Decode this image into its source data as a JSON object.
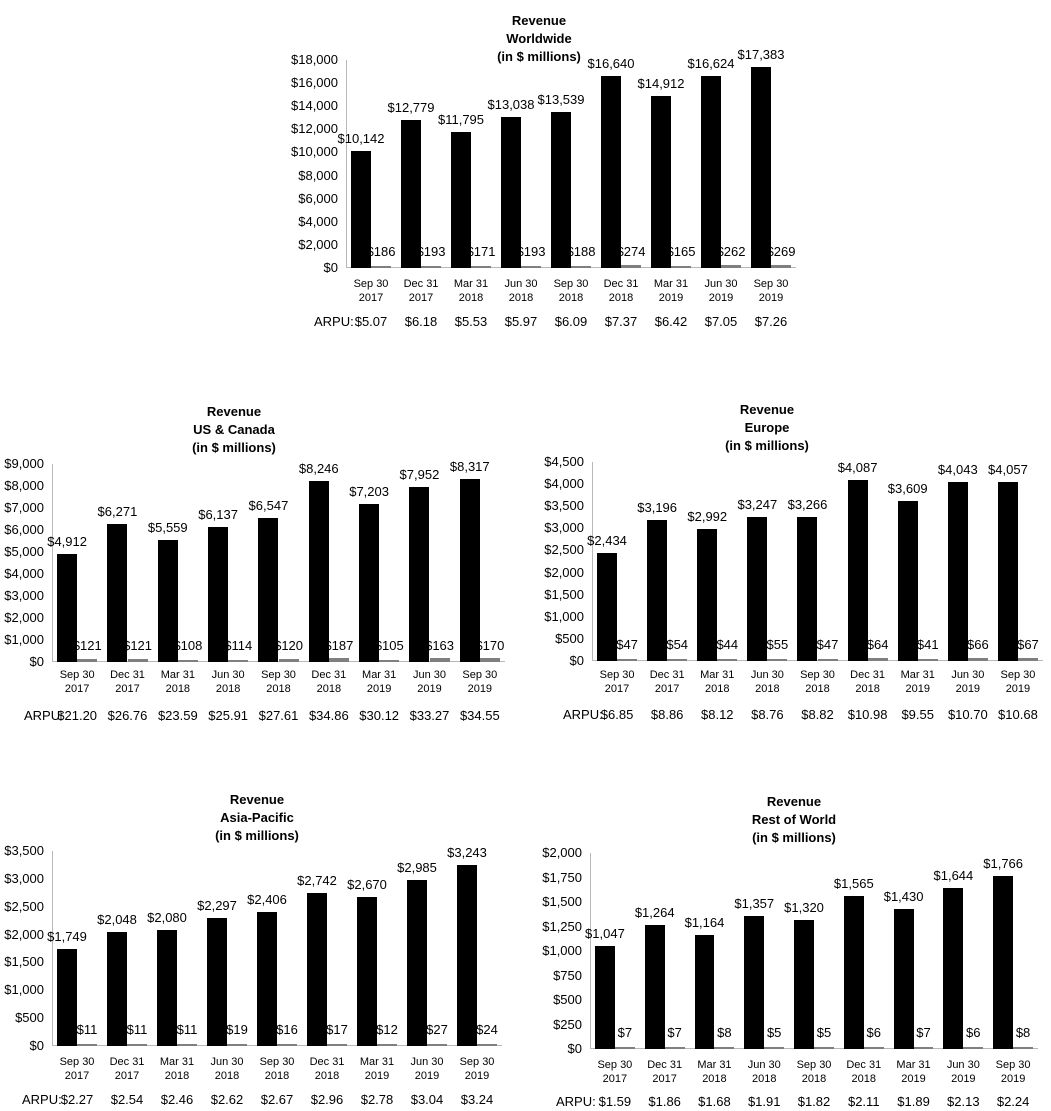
{
  "categories": [
    {
      "line1": "Sep 30",
      "line2": "2017"
    },
    {
      "line1": "Dec 31",
      "line2": "2017"
    },
    {
      "line1": "Mar 31",
      "line2": "2018"
    },
    {
      "line1": "Jun 30",
      "line2": "2018"
    },
    {
      "line1": "Sep 30",
      "line2": "2018"
    },
    {
      "line1": "Dec 31",
      "line2": "2018"
    },
    {
      "line1": "Mar 31",
      "line2": "2019"
    },
    {
      "line1": "Jun 30",
      "line2": "2019"
    },
    {
      "line1": "Sep 30",
      "line2": "2019"
    }
  ],
  "arpu_label": "ARPU:",
  "colors": {
    "revenue_bar": "#000000",
    "secondary_bar": "#7f7f7f",
    "axis": "#b8b8b8"
  },
  "charts": [
    {
      "id": "worldwide",
      "title": [
        "Revenue",
        "Worldwide",
        "(in $ millions)"
      ],
      "yticks": [
        "$0",
        "$2,000",
        "$4,000",
        "$6,000",
        "$8,000",
        "$10,000",
        "$12,000",
        "$14,000",
        "$16,000",
        "$18,000"
      ],
      "ymax": 18000,
      "revenue": [
        10142,
        12779,
        11795,
        13038,
        13539,
        16640,
        14912,
        16624,
        17383
      ],
      "revenue_labels": [
        "$10,142",
        "$12,779",
        "$11,795",
        "$13,038",
        "$13,539",
        "$16,640",
        "$14,912",
        "$16,624",
        "$17,383"
      ],
      "secondary": [
        186,
        193,
        171,
        193,
        188,
        274,
        165,
        262,
        269
      ],
      "secondary_labels": [
        "$186",
        "$193",
        "$171",
        "$193",
        "$188",
        "$274",
        "$165",
        "$262",
        "$269"
      ],
      "arpu": [
        "$5.07",
        "$6.18",
        "$5.53",
        "$5.97",
        "$6.09",
        "$7.37",
        "$6.42",
        "$7.05",
        "$7.26"
      ]
    },
    {
      "id": "us-canada",
      "title": [
        "Revenue",
        "US & Canada",
        "(in $ millions)"
      ],
      "yticks": [
        "$0",
        "$1,000",
        "$2,000",
        "$3,000",
        "$4,000",
        "$5,000",
        "$6,000",
        "$7,000",
        "$8,000",
        "$9,000"
      ],
      "ymax": 9000,
      "revenue": [
        4912,
        6271,
        5559,
        6137,
        6547,
        8246,
        7203,
        7952,
        8317
      ],
      "revenue_labels": [
        "$4,912",
        "$6,271",
        "$5,559",
        "$6,137",
        "$6,547",
        "$8,246",
        "$7,203",
        "$7,952",
        "$8,317"
      ],
      "secondary": [
        121,
        121,
        108,
        114,
        120,
        187,
        105,
        163,
        170
      ],
      "secondary_labels": [
        "$121",
        "$121",
        "$108",
        "$114",
        "$120",
        "$187",
        "$105",
        "$163",
        "$170"
      ],
      "arpu": [
        "$21.20",
        "$26.76",
        "$23.59",
        "$25.91",
        "$27.61",
        "$34.86",
        "$30.12",
        "$33.27",
        "$34.55"
      ]
    },
    {
      "id": "europe",
      "title": [
        "Revenue",
        "Europe",
        "(in $ millions)"
      ],
      "yticks": [
        "$0",
        "$500",
        "$1,000",
        "$1,500",
        "$2,000",
        "$2,500",
        "$3,000",
        "$3,500",
        "$4,000",
        "$4,500"
      ],
      "ymax": 4500,
      "revenue": [
        2434,
        3196,
        2992,
        3247,
        3266,
        4087,
        3609,
        4043,
        4057
      ],
      "revenue_labels": [
        "$2,434",
        "$3,196",
        "$2,992",
        "$3,247",
        "$3,266",
        "$4,087",
        "$3,609",
        "$4,043",
        "$4,057"
      ],
      "secondary": [
        47,
        54,
        44,
        55,
        47,
        64,
        41,
        66,
        67
      ],
      "secondary_labels": [
        "$47",
        "$54",
        "$44",
        "$55",
        "$47",
        "$64",
        "$41",
        "$66",
        "$67"
      ],
      "arpu": [
        "$6.85",
        "$8.86",
        "$8.12",
        "$8.76",
        "$8.82",
        "$10.98",
        "$9.55",
        "$10.70",
        "$10.68"
      ]
    },
    {
      "id": "asia-pacific",
      "title": [
        "Revenue",
        "Asia-Pacific",
        "(in $ millions)"
      ],
      "yticks": [
        "$0",
        "$500",
        "$1,000",
        "$1,500",
        "$2,000",
        "$2,500",
        "$3,000",
        "$3,500"
      ],
      "ymax": 3500,
      "revenue": [
        1749,
        2048,
        2080,
        2297,
        2406,
        2742,
        2670,
        2985,
        3243
      ],
      "revenue_labels": [
        "$1,749",
        "$2,048",
        "$2,080",
        "$2,297",
        "$2,406",
        "$2,742",
        "$2,670",
        "$2,985",
        "$3,243"
      ],
      "secondary": [
        11,
        11,
        11,
        19,
        16,
        17,
        12,
        27,
        24
      ],
      "secondary_labels": [
        "$11",
        "$11",
        "$11",
        "$19",
        "$16",
        "$17",
        "$12",
        "$27",
        "$24"
      ],
      "arpu": [
        "$2.27",
        "$2.54",
        "$2.46",
        "$2.62",
        "$2.67",
        "$2.96",
        "$2.78",
        "$3.04",
        "$3.24"
      ]
    },
    {
      "id": "rest-of-world",
      "title": [
        "Revenue",
        "Rest of World",
        "(in $ millions)"
      ],
      "yticks": [
        "$0",
        "$250",
        "$500",
        "$750",
        "$1,000",
        "$1,250",
        "$1,500",
        "$1,750",
        "$2,000"
      ],
      "ymax": 2000,
      "revenue": [
        1047,
        1264,
        1164,
        1357,
        1320,
        1565,
        1430,
        1644,
        1766
      ],
      "revenue_labels": [
        "$1,047",
        "$1,264",
        "$1,164",
        "$1,357",
        "$1,320",
        "$1,565",
        "$1,430",
        "$1,644",
        "$1,766"
      ],
      "secondary": [
        7,
        7,
        8,
        5,
        5,
        6,
        7,
        6,
        8
      ],
      "secondary_labels": [
        "$7",
        "$7",
        "$8",
        "$5",
        "$5",
        "$6",
        "$7",
        "$6",
        "$8"
      ],
      "arpu": [
        "$1.59",
        "$1.86",
        "$1.68",
        "$1.91",
        "$1.82",
        "$2.11",
        "$1.89",
        "$2.13",
        "$2.24"
      ]
    }
  ],
  "chart_data": [
    {
      "type": "bar",
      "title": "Revenue Worldwide (in $ millions)",
      "categories": [
        "Sep 30 2017",
        "Dec 31 2017",
        "Mar 31 2018",
        "Jun 30 2018",
        "Sep 30 2018",
        "Dec 31 2018",
        "Mar 31 2019",
        "Jun 30 2019",
        "Sep 30 2019"
      ],
      "series": [
        {
          "name": "Revenue",
          "values": [
            10142,
            12779,
            11795,
            13038,
            13539,
            16640,
            14912,
            16624,
            17383
          ]
        },
        {
          "name": "Secondary (gray)",
          "values": [
            186,
            193,
            171,
            193,
            188,
            274,
            165,
            262,
            269
          ]
        }
      ],
      "arpu": [
        5.07,
        6.18,
        5.53,
        5.97,
        6.09,
        7.37,
        6.42,
        7.05,
        7.26
      ],
      "xlabel": "",
      "ylabel": "",
      "ylim": [
        0,
        18000
      ],
      "grid": false,
      "legend": "none"
    },
    {
      "type": "bar",
      "title": "Revenue US & Canada (in $ millions)",
      "categories": [
        "Sep 30 2017",
        "Dec 31 2017",
        "Mar 31 2018",
        "Jun 30 2018",
        "Sep 30 2018",
        "Dec 31 2018",
        "Mar 31 2019",
        "Jun 30 2019",
        "Sep 30 2019"
      ],
      "series": [
        {
          "name": "Revenue",
          "values": [
            4912,
            6271,
            5559,
            6137,
            6547,
            8246,
            7203,
            7952,
            8317
          ]
        },
        {
          "name": "Secondary (gray)",
          "values": [
            121,
            121,
            108,
            114,
            120,
            187,
            105,
            163,
            170
          ]
        }
      ],
      "arpu": [
        21.2,
        26.76,
        23.59,
        25.91,
        27.61,
        34.86,
        30.12,
        33.27,
        34.55
      ],
      "xlabel": "",
      "ylabel": "",
      "ylim": [
        0,
        9000
      ],
      "grid": false,
      "legend": "none"
    },
    {
      "type": "bar",
      "title": "Revenue Europe (in $ millions)",
      "categories": [
        "Sep 30 2017",
        "Dec 31 2017",
        "Mar 31 2018",
        "Jun 30 2018",
        "Sep 30 2018",
        "Dec 31 2018",
        "Mar 31 2019",
        "Jun 30 2019",
        "Sep 30 2019"
      ],
      "series": [
        {
          "name": "Revenue",
          "values": [
            2434,
            3196,
            2992,
            3247,
            3266,
            4087,
            3609,
            4043,
            4057
          ]
        },
        {
          "name": "Secondary (gray)",
          "values": [
            47,
            54,
            44,
            55,
            47,
            64,
            41,
            66,
            67
          ]
        }
      ],
      "arpu": [
        6.85,
        8.86,
        8.12,
        8.76,
        8.82,
        10.98,
        9.55,
        10.7,
        10.68
      ],
      "xlabel": "",
      "ylabel": "",
      "ylim": [
        0,
        4500
      ],
      "grid": false,
      "legend": "none"
    },
    {
      "type": "bar",
      "title": "Revenue Asia-Pacific (in $ millions)",
      "categories": [
        "Sep 30 2017",
        "Dec 31 2017",
        "Mar 31 2018",
        "Jun 30 2018",
        "Sep 30 2018",
        "Dec 31 2018",
        "Mar 31 2019",
        "Jun 30 2019",
        "Sep 30 2019"
      ],
      "series": [
        {
          "name": "Revenue",
          "values": [
            1749,
            2048,
            2080,
            2297,
            2406,
            2742,
            2670,
            2985,
            3243
          ]
        },
        {
          "name": "Secondary (gray)",
          "values": [
            11,
            11,
            11,
            19,
            16,
            17,
            12,
            27,
            24
          ]
        }
      ],
      "arpu": [
        2.27,
        2.54,
        2.46,
        2.62,
        2.67,
        2.96,
        2.78,
        3.04,
        3.24
      ],
      "xlabel": "",
      "ylabel": "",
      "ylim": [
        0,
        3500
      ],
      "grid": false,
      "legend": "none"
    },
    {
      "type": "bar",
      "title": "Revenue Rest of World (in $ millions)",
      "categories": [
        "Sep 30 2017",
        "Dec 31 2017",
        "Mar 31 2018",
        "Jun 30 2018",
        "Sep 30 2018",
        "Dec 31 2018",
        "Mar 31 2019",
        "Jun 30 2019",
        "Sep 30 2019"
      ],
      "series": [
        {
          "name": "Revenue",
          "values": [
            1047,
            1264,
            1164,
            1357,
            1320,
            1565,
            1430,
            1644,
            1766
          ]
        },
        {
          "name": "Secondary (gray)",
          "values": [
            7,
            7,
            8,
            5,
            5,
            6,
            7,
            6,
            8
          ]
        }
      ],
      "arpu": [
        1.59,
        1.86,
        1.68,
        1.91,
        1.82,
        2.11,
        1.89,
        2.13,
        2.24
      ],
      "xlabel": "",
      "ylabel": "",
      "ylim": [
        0,
        2000
      ],
      "grid": false,
      "legend": "none"
    }
  ]
}
